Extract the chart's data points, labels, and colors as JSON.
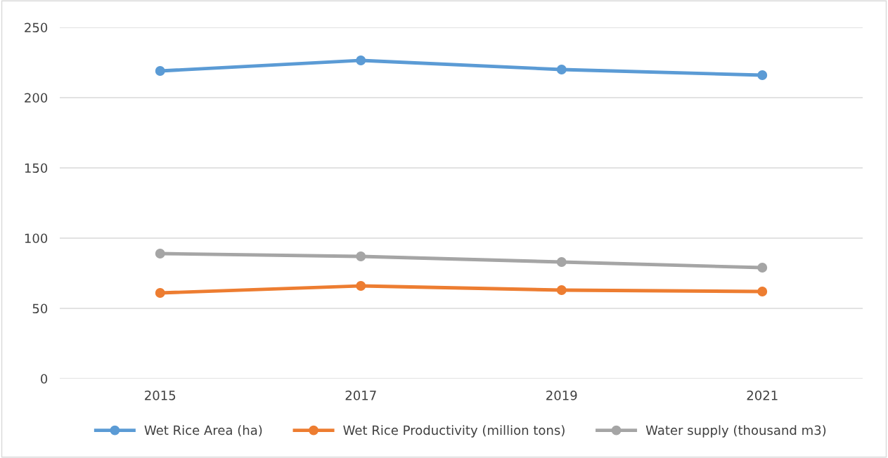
{
  "chart_data": {
    "type": "line",
    "categories": [
      "2015",
      "2017",
      "2019",
      "2021"
    ],
    "series": [
      {
        "name": "Wet Rice Area (ha)",
        "color": "#5b9bd5",
        "values": [
          219,
          226.5,
          220,
          216
        ]
      },
      {
        "name": "Wet Rice Productivity (million tons)",
        "color": "#ed7d31",
        "values": [
          61,
          66,
          63,
          62
        ]
      },
      {
        "name": "Water supply (thousand m3)",
        "color": "#a5a5a5",
        "values": [
          89,
          87,
          83,
          79
        ]
      }
    ],
    "ylim": [
      0,
      250
    ],
    "yticks": [
      0,
      50,
      100,
      150,
      200,
      250
    ],
    "grid": "y",
    "legend": "bottom",
    "marker": "circle",
    "line_style": "solid"
  }
}
